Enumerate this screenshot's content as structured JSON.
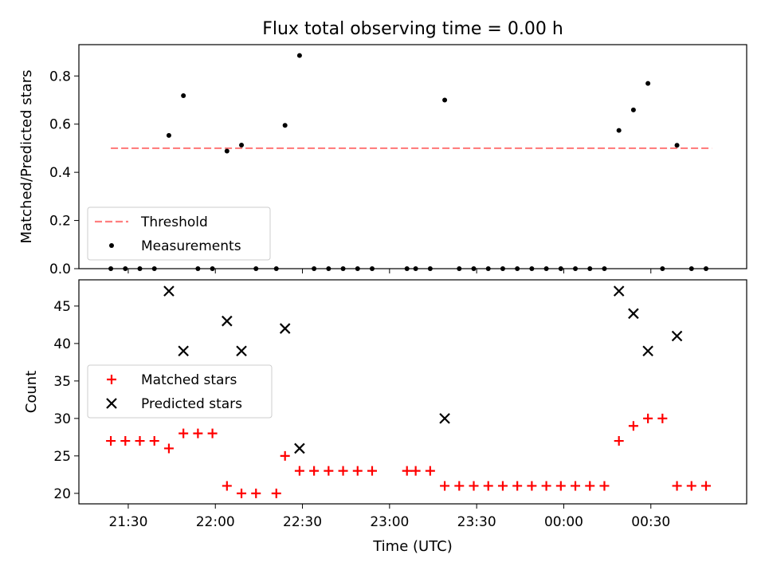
{
  "figure": {
    "title": "Flux total observing time = 0.00 h",
    "xlabel": "Time (UTC)"
  },
  "chart_data": [
    {
      "type": "scatter",
      "ylabel": "Matched/Predicted stars",
      "ylim": [
        0.0,
        0.93
      ],
      "yticks": [
        0.0,
        0.2,
        0.4,
        0.6,
        0.8
      ],
      "ytick_labels": [
        "0.0",
        "0.2",
        "0.4",
        "0.6",
        "0.8"
      ],
      "xlim": [
        "21:13",
        "01:03"
      ],
      "xticks": [
        "21:30",
        "22:00",
        "22:30",
        "23:00",
        "23:30",
        "00:00",
        "00:30"
      ],
      "threshold": {
        "name": "Threshold",
        "value": 0.5,
        "x_start": "21:24",
        "x_end": "00:51",
        "color": "#ff7f7f",
        "style": "dashed"
      },
      "series": [
        {
          "name": "Measurements",
          "marker": "dot",
          "color": "#000000",
          "x": [
            "21:24",
            "21:29",
            "21:34",
            "21:39",
            "21:44",
            "21:49",
            "21:54",
            "21:59",
            "22:04",
            "22:09",
            "22:14",
            "22:21",
            "22:24",
            "22:29",
            "22:34",
            "22:39",
            "22:44",
            "22:49",
            "22:54",
            "23:06",
            "23:09",
            "23:14",
            "23:19",
            "23:24",
            "23:29",
            "23:34",
            "23:39",
            "23:44",
            "23:49",
            "23:54",
            "23:59",
            "00:04",
            "00:09",
            "00:14",
            "00:19",
            "00:24",
            "00:29",
            "00:34",
            "00:39",
            "00:44",
            "00:49"
          ],
          "y": [
            0,
            0,
            0,
            0,
            0.553,
            0.718,
            0,
            0,
            0.488,
            0.513,
            0,
            0,
            0.595,
            0.885,
            0,
            0,
            0,
            0,
            0,
            0,
            0,
            0,
            0.7,
            0,
            0,
            0,
            0,
            0,
            0,
            0,
            0,
            0,
            0,
            0,
            0.574,
            0.659,
            0.769,
            0,
            0.512,
            0,
            0
          ]
        }
      ],
      "legend": {
        "location": "lower-left",
        "entries": [
          "Threshold",
          "Measurements"
        ]
      }
    },
    {
      "type": "scatter",
      "ylabel": "Count",
      "ylim": [
        18.6,
        48.5
      ],
      "yticks": [
        20,
        25,
        30,
        35,
        40,
        45
      ],
      "ytick_labels": [
        "20",
        "25",
        "30",
        "35",
        "40",
        "45"
      ],
      "xlim": [
        "21:13",
        "01:03"
      ],
      "xticks": [
        "21:30",
        "22:00",
        "22:30",
        "23:00",
        "23:30",
        "00:00",
        "00:30"
      ],
      "xtick_labels": [
        "21:30",
        "22:00",
        "22:30",
        "23:00",
        "23:30",
        "00:00",
        "00:30"
      ],
      "series": [
        {
          "name": "Matched stars",
          "marker": "plus",
          "color": "#ff0000",
          "x": [
            "21:24",
            "21:29",
            "21:34",
            "21:39",
            "21:44",
            "21:49",
            "21:54",
            "21:59",
            "22:04",
            "22:09",
            "22:14",
            "22:21",
            "22:24",
            "22:29",
            "22:34",
            "22:39",
            "22:44",
            "22:49",
            "22:54",
            "23:06",
            "23:09",
            "23:14",
            "23:19",
            "23:24",
            "23:29",
            "23:34",
            "23:39",
            "23:44",
            "23:49",
            "23:54",
            "23:59",
            "00:04",
            "00:09",
            "00:14",
            "00:19",
            "00:24",
            "00:29",
            "00:34",
            "00:39",
            "00:44",
            "00:49"
          ],
          "y": [
            27,
            27,
            27,
            27,
            26,
            28,
            28,
            28,
            21,
            20,
            20,
            20,
            25,
            23,
            23,
            23,
            23,
            23,
            23,
            23,
            23,
            23,
            21,
            21,
            21,
            21,
            21,
            21,
            21,
            21,
            21,
            21,
            21,
            21,
            27,
            29,
            30,
            30,
            21,
            21,
            21
          ]
        },
        {
          "name": "Predicted stars",
          "marker": "x",
          "color": "#000000",
          "x": [
            "21:44",
            "21:49",
            "22:04",
            "22:09",
            "22:24",
            "22:29",
            "23:19",
            "00:19",
            "00:24",
            "00:29",
            "00:39"
          ],
          "y": [
            47,
            39,
            43,
            39,
            42,
            26,
            30,
            47,
            44,
            39,
            41
          ]
        }
      ],
      "legend": {
        "location": "center-left",
        "entries": [
          "Matched stars",
          "Predicted stars"
        ]
      }
    }
  ]
}
